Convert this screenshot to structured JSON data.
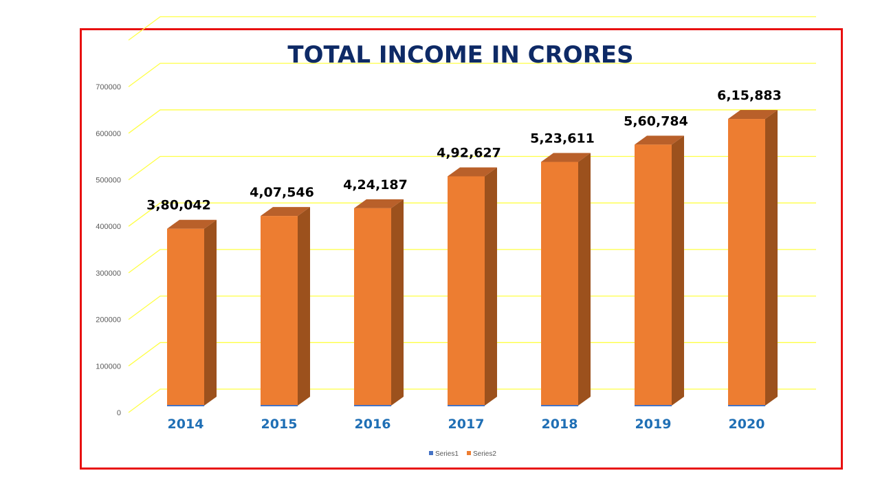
{
  "chart_data": {
    "type": "bar",
    "title": "TOTAL INCOME IN CRORES",
    "categories": [
      "2014",
      "2015",
      "2016",
      "2017",
      "2018",
      "2019",
      "2020"
    ],
    "series": [
      {
        "name": "Series1",
        "values": [
          0,
          0,
          0,
          0,
          0,
          0,
          0
        ],
        "color": "#4472c4"
      },
      {
        "name": "Series2",
        "values": [
          380042,
          407546,
          424187,
          492627,
          523611,
          560784,
          615883
        ],
        "color": "#ed7d31"
      }
    ],
    "data_labels": [
      "3,80,042",
      "4,07,546",
      "4,24,187",
      "4,92,627",
      "5,23,611",
      "5,60,784",
      "6,15,883"
    ],
    "yticks": [
      0,
      100000,
      200000,
      300000,
      400000,
      500000,
      600000,
      700000
    ],
    "ytick_labels": [
      "0",
      "100000",
      "200000",
      "300000",
      "400000",
      "500000",
      "600000",
      "700000"
    ],
    "ylim": [
      0,
      700000
    ],
    "grid": true,
    "grid_color": "#ffff44",
    "legend_position": "bottom",
    "xlabel": "",
    "ylabel": ""
  }
}
